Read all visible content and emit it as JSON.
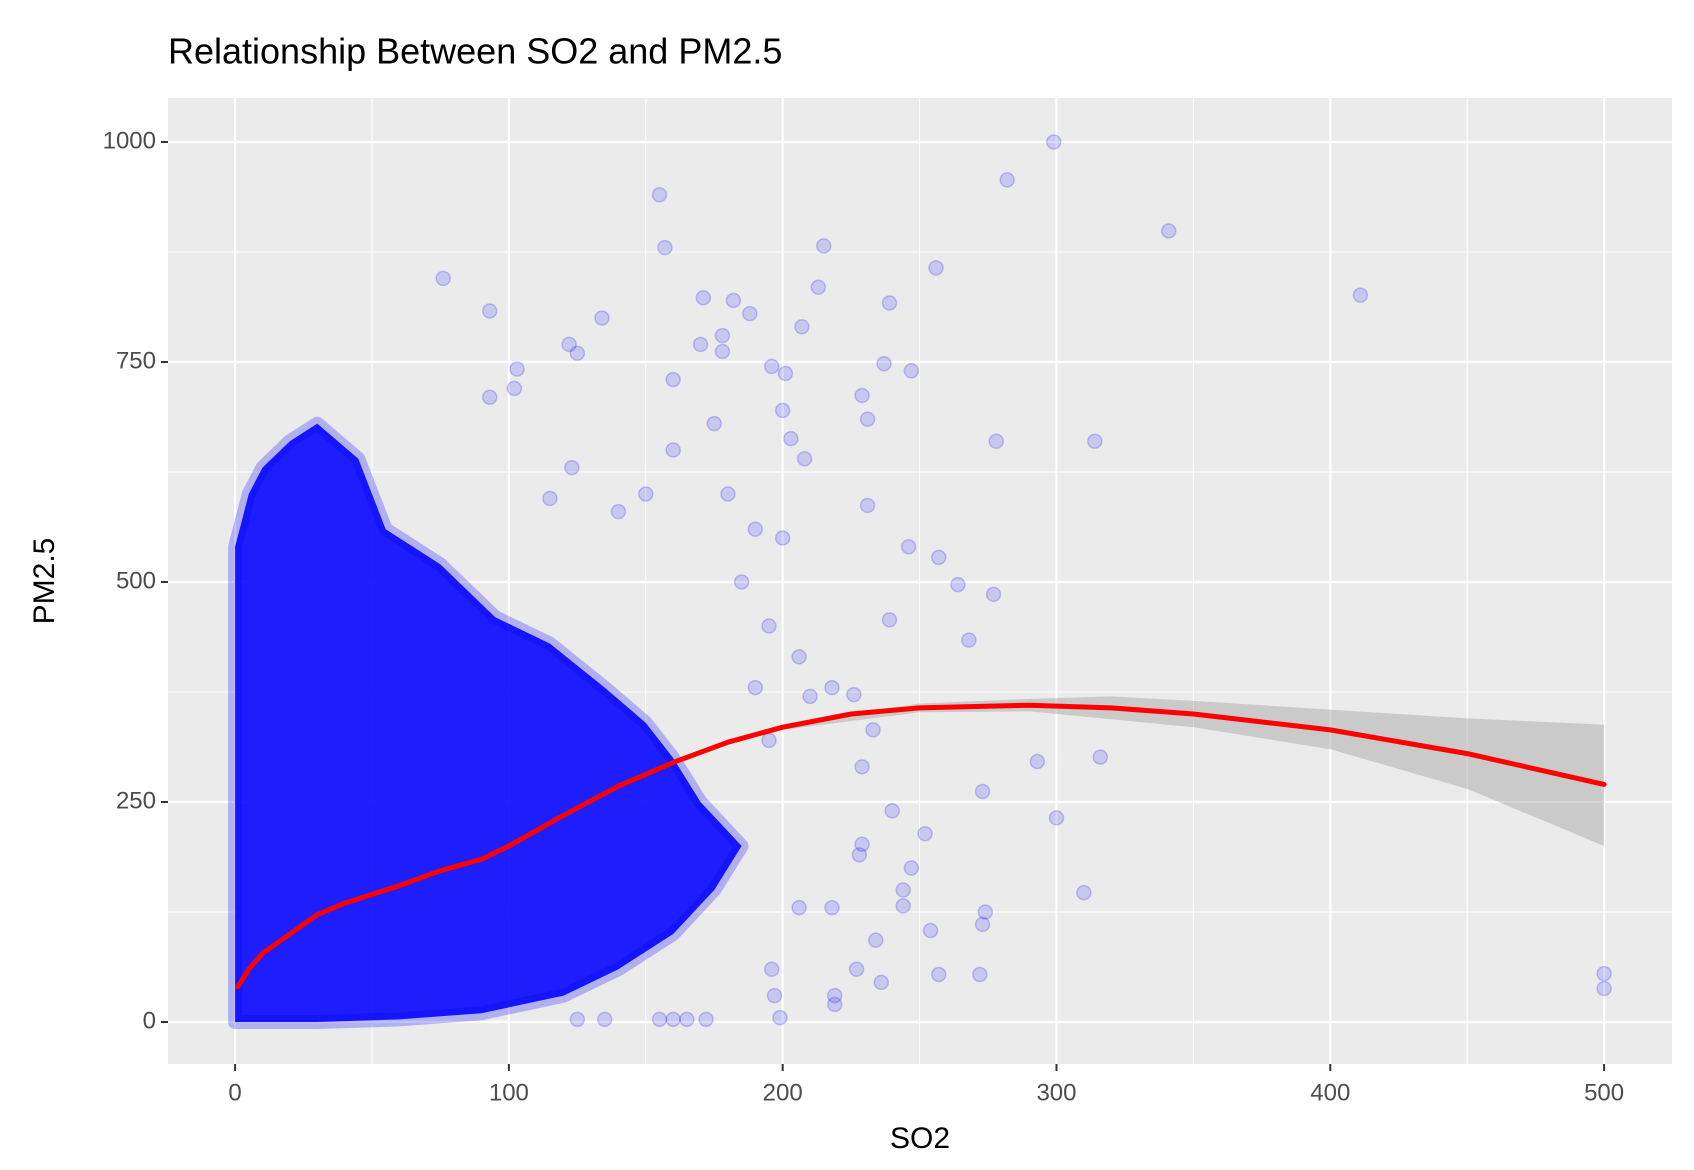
{
  "chart_data": {
    "type": "scatter",
    "title": "Relationship Between SO2 and PM2.5",
    "xlabel": "SO2",
    "ylabel": "PM2.5",
    "xlim": [
      -24.5,
      524.8
    ],
    "ylim": [
      -47.7,
      1050
    ],
    "xticks": [
      0,
      100,
      200,
      300,
      400,
      500
    ],
    "yticks": [
      0,
      250,
      500,
      750,
      1000
    ],
    "grid": true,
    "color": "#0000ff",
    "x": [
      299,
      282,
      341,
      155,
      157,
      215,
      76,
      93,
      134,
      171,
      182,
      188,
      213,
      207,
      239,
      256,
      411,
      103,
      122,
      125,
      178,
      178,
      196,
      201,
      237,
      247,
      229,
      231,
      278,
      314,
      170,
      160,
      175,
      200,
      203,
      208,
      231,
      246,
      257,
      264,
      277,
      239,
      268,
      206,
      218,
      226,
      233,
      229,
      273,
      293,
      316,
      300,
      252,
      240,
      229,
      228,
      247,
      244,
      244,
      218,
      206,
      234,
      254,
      273,
      274,
      310,
      257,
      272,
      227,
      236,
      219,
      219,
      197,
      196,
      199,
      172,
      165,
      160,
      155,
      135,
      125,
      500,
      500,
      93,
      102,
      123,
      115,
      140,
      150,
      160,
      180,
      190,
      200,
      185,
      195,
      210,
      190,
      195
    ],
    "y": [
      1000,
      957,
      899,
      940,
      880,
      882,
      845,
      808,
      800,
      823,
      820,
      805,
      835,
      790,
      817,
      857,
      826,
      742,
      770,
      760,
      780,
      762,
      745,
      737,
      748,
      740,
      712,
      685,
      660,
      660,
      770,
      730,
      680,
      695,
      663,
      640,
      587,
      540,
      528,
      497,
      486,
      457,
      434,
      415,
      380,
      372,
      332,
      290,
      262,
      296,
      301,
      232,
      214,
      240,
      202,
      190,
      175,
      150,
      132,
      130,
      130,
      93,
      104,
      111,
      125,
      147,
      54,
      54,
      60,
      45,
      30,
      20,
      30,
      60,
      5,
      3,
      3,
      3,
      3,
      3,
      3,
      55,
      38,
      710,
      720,
      630,
      595,
      580,
      600,
      650,
      600,
      560,
      550,
      500,
      450,
      370,
      380,
      320
    ],
    "cloud": {
      "x": [
        0,
        0,
        5,
        10,
        20,
        30,
        45,
        55,
        75,
        95,
        115,
        135,
        150,
        160,
        170,
        185,
        175,
        160,
        140,
        120,
        90,
        60,
        30
      ],
      "y": [
        0,
        540,
        600,
        630,
        660,
        680,
        640,
        560,
        520,
        460,
        430,
        380,
        340,
        300,
        250,
        200,
        150,
        100,
        60,
        30,
        10,
        3,
        0
      ]
    },
    "smooth": {
      "color": "#ff0000",
      "x": [
        1,
        5,
        10,
        20,
        30,
        40,
        50,
        60,
        75,
        90,
        100,
        120,
        140,
        160,
        180,
        200,
        225,
        250,
        290,
        320,
        350,
        400,
        450,
        500
      ],
      "y": [
        40,
        60,
        78,
        100,
        122,
        135,
        145,
        155,
        172,
        185,
        200,
        235,
        268,
        295,
        318,
        335,
        350,
        357,
        360,
        357,
        350,
        332,
        305,
        270
      ]
    },
    "band": {
      "color": "#999999",
      "x": [
        200,
        250,
        290,
        320,
        350,
        400,
        450,
        500
      ],
      "lower": [
        332,
        352,
        353,
        344,
        335,
        310,
        265,
        200
      ],
      "upper": [
        338,
        362,
        367,
        370,
        365,
        355,
        345,
        338
      ]
    }
  }
}
